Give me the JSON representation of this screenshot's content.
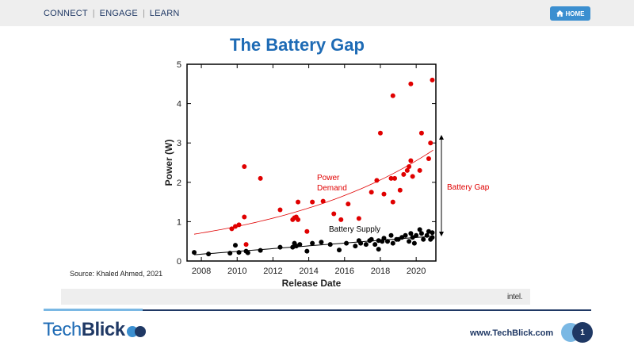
{
  "nav": {
    "items": [
      "CONNECT",
      "ENGAGE",
      "LEARN"
    ],
    "home_label": "HOME"
  },
  "slide": {
    "title": "The Battery Gap",
    "source": "Source: Khaled Ahmed, 2021",
    "sponsor_logo_text": "intel.",
    "footer_url": "www.TechBlick.com",
    "page_number": "1"
  },
  "brand": {
    "part1": "Tech",
    "part2": "Blick"
  },
  "colors": {
    "accent": "#1e6bb5",
    "dark": "#1f3864",
    "demand": "#e00000",
    "supply": "#000000"
  },
  "chart_data": {
    "type": "scatter",
    "title": "",
    "xlabel": "Release Date",
    "ylabel": "Power (W)",
    "xlim": [
      2007.2,
      2021.1
    ],
    "ylim": [
      0,
      5
    ],
    "x_ticks": [
      "2008",
      "2010",
      "2012",
      "2014",
      "2016",
      "2018",
      "2020"
    ],
    "y_ticks": [
      "0",
      "1",
      "2",
      "3",
      "4",
      "5"
    ],
    "grid": false,
    "series": [
      {
        "name": "Power Demand",
        "color": "#e00000",
        "points": [
          [
            2009.7,
            0.82
          ],
          [
            2009.9,
            0.88
          ],
          [
            2010.1,
            0.92
          ],
          [
            2010.4,
            1.12
          ],
          [
            2010.4,
            2.4
          ],
          [
            2010.5,
            0.42
          ],
          [
            2011.3,
            2.1
          ],
          [
            2012.4,
            1.3
          ],
          [
            2013.1,
            1.05
          ],
          [
            2013.2,
            1.1
          ],
          [
            2013.3,
            1.12
          ],
          [
            2013.4,
            1.05
          ],
          [
            2013.4,
            1.5
          ],
          [
            2013.9,
            0.75
          ],
          [
            2014.2,
            1.5
          ],
          [
            2014.8,
            1.52
          ],
          [
            2015.4,
            1.2
          ],
          [
            2015.8,
            1.05
          ],
          [
            2016.2,
            1.45
          ],
          [
            2016.8,
            1.08
          ],
          [
            2017.5,
            1.75
          ],
          [
            2017.8,
            2.05
          ],
          [
            2018.0,
            3.25
          ],
          [
            2018.2,
            1.7
          ],
          [
            2018.6,
            2.1
          ],
          [
            2018.7,
            1.5
          ],
          [
            2018.7,
            4.2
          ],
          [
            2018.8,
            2.1
          ],
          [
            2019.1,
            1.8
          ],
          [
            2019.3,
            2.2
          ],
          [
            2019.5,
            2.3
          ],
          [
            2019.6,
            2.4
          ],
          [
            2019.7,
            2.55
          ],
          [
            2019.7,
            4.5
          ],
          [
            2019.8,
            2.15
          ],
          [
            2020.2,
            2.3
          ],
          [
            2020.3,
            3.25
          ],
          [
            2020.7,
            2.6
          ],
          [
            2020.8,
            3.0
          ],
          [
            2020.9,
            4.6
          ]
        ],
        "trend": "exponential"
      },
      {
        "name": "Battery Supply",
        "color": "#000000",
        "points": [
          [
            2007.6,
            0.22
          ],
          [
            2008.4,
            0.18
          ],
          [
            2009.6,
            0.2
          ],
          [
            2009.9,
            0.4
          ],
          [
            2010.1,
            0.22
          ],
          [
            2010.5,
            0.25
          ],
          [
            2010.6,
            0.21
          ],
          [
            2011.3,
            0.27
          ],
          [
            2012.4,
            0.35
          ],
          [
            2013.1,
            0.35
          ],
          [
            2013.2,
            0.45
          ],
          [
            2013.3,
            0.38
          ],
          [
            2013.5,
            0.42
          ],
          [
            2013.9,
            0.25
          ],
          [
            2014.2,
            0.45
          ],
          [
            2014.7,
            0.48
          ],
          [
            2015.2,
            0.42
          ],
          [
            2015.7,
            0.28
          ],
          [
            2016.1,
            0.45
          ],
          [
            2016.6,
            0.38
          ],
          [
            2016.8,
            0.52
          ],
          [
            2016.9,
            0.45
          ],
          [
            2017.2,
            0.42
          ],
          [
            2017.4,
            0.52
          ],
          [
            2017.5,
            0.55
          ],
          [
            2017.7,
            0.42
          ],
          [
            2017.9,
            0.3
          ],
          [
            2017.9,
            0.52
          ],
          [
            2018.1,
            0.5
          ],
          [
            2018.2,
            0.58
          ],
          [
            2018.4,
            0.5
          ],
          [
            2018.6,
            0.65
          ],
          [
            2018.7,
            0.45
          ],
          [
            2018.9,
            0.55
          ],
          [
            2019.0,
            0.55
          ],
          [
            2019.2,
            0.6
          ],
          [
            2019.4,
            0.65
          ],
          [
            2019.6,
            0.5
          ],
          [
            2019.7,
            0.7
          ],
          [
            2019.8,
            0.6
          ],
          [
            2019.9,
            0.45
          ],
          [
            2020.0,
            0.65
          ],
          [
            2020.2,
            0.8
          ],
          [
            2020.3,
            0.7
          ],
          [
            2020.4,
            0.55
          ],
          [
            2020.6,
            0.65
          ],
          [
            2020.7,
            0.75
          ],
          [
            2020.8,
            0.55
          ],
          [
            2020.9,
            0.6
          ],
          [
            2020.9,
            0.72
          ]
        ],
        "trend": "linear"
      }
    ],
    "annotations": [
      "Power Demand",
      "Battery Supply",
      "Battery Gap"
    ]
  }
}
